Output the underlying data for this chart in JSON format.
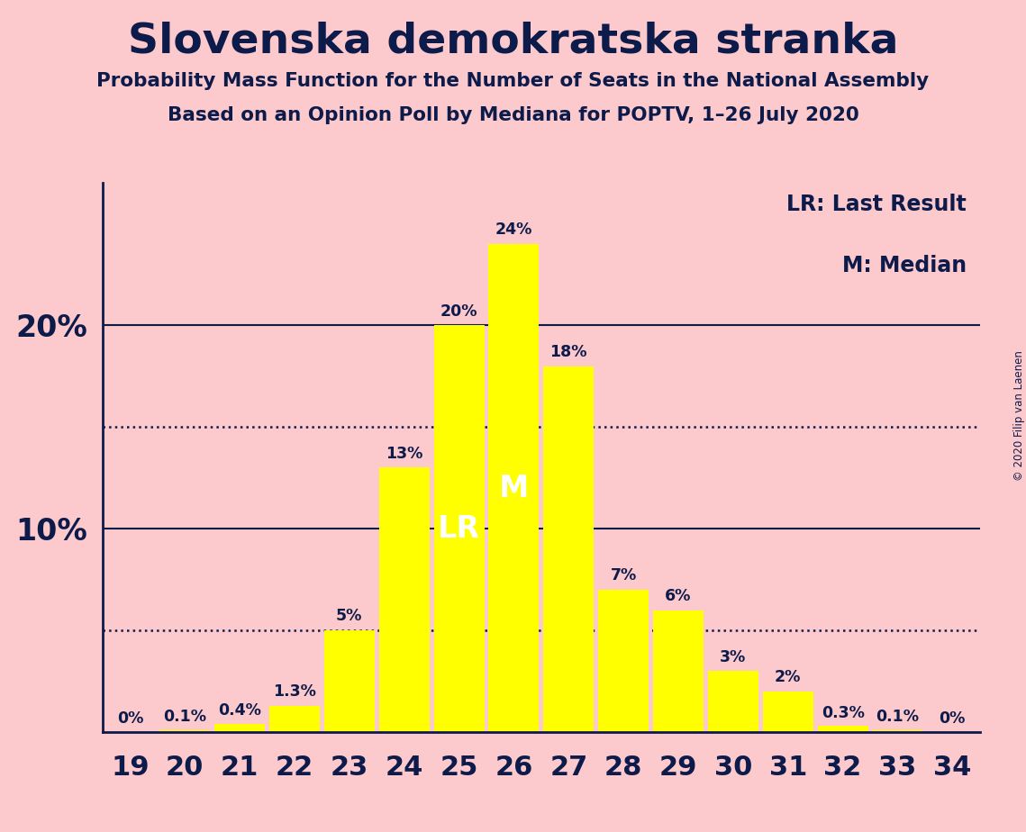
{
  "title": "Slovenska demokratska stranka",
  "subtitle1": "Probability Mass Function for the Number of Seats in the National Assembly",
  "subtitle2": "Based on an Opinion Poll by Mediana for POPTV, 1–26 July 2020",
  "copyright": "© 2020 Filip van Laenen",
  "background_color": "#fcc9cc",
  "bar_color": "#ffff00",
  "text_color": "#0d1b4b",
  "categories": [
    19,
    20,
    21,
    22,
    23,
    24,
    25,
    26,
    27,
    28,
    29,
    30,
    31,
    32,
    33,
    34
  ],
  "values": [
    0.0,
    0.1,
    0.4,
    1.3,
    5.0,
    13.0,
    20.0,
    24.0,
    18.0,
    7.0,
    6.0,
    3.0,
    2.0,
    0.3,
    0.1,
    0.0
  ],
  "value_labels": [
    "0%",
    "0.1%",
    "0.4%",
    "1.3%",
    "5%",
    "13%",
    "20%",
    "24%",
    "18%",
    "7%",
    "6%",
    "3%",
    "2%",
    "0.3%",
    "0.1%",
    "0%"
  ],
  "lr_seat": 25,
  "median_seat": 26,
  "yticks": [
    10,
    20
  ],
  "dotted_lines": [
    5,
    15
  ],
  "ylim": [
    0,
    27
  ],
  "legend_lr": "LR: Last Result",
  "legend_m": "M: Median"
}
